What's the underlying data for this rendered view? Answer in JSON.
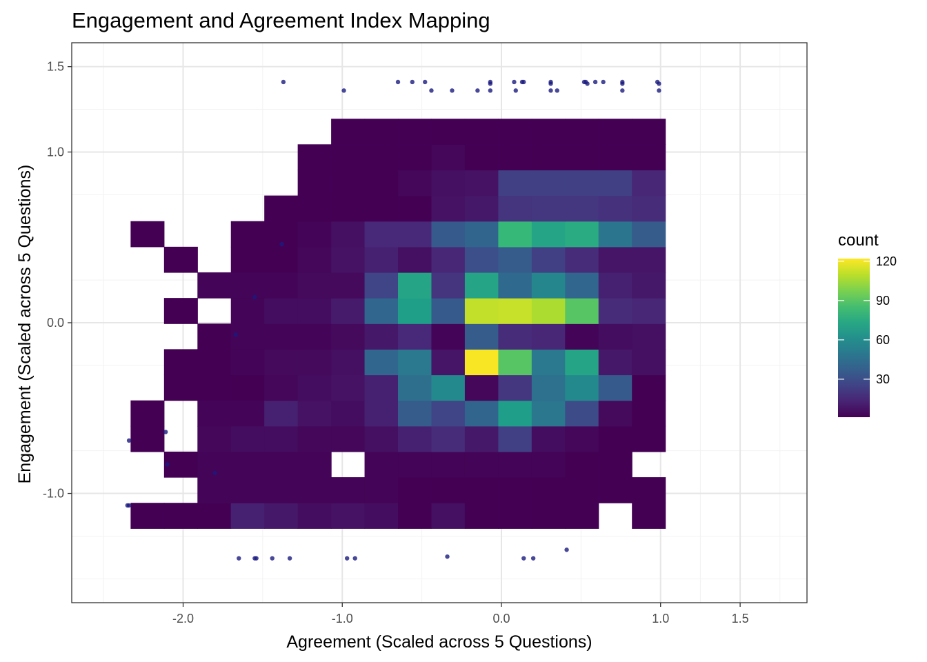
{
  "chart_data": {
    "type": "heatmap",
    "title": "Engagement and Agreement Index Mapping",
    "xlabel": "Agreement (Scaled across 5 Questions)",
    "ylabel": "Engagement (Scaled across 5 Questions)",
    "x_ticks": [
      {
        "value": -2.0,
        "label": "-2.0"
      },
      {
        "value": -1.0,
        "label": "-1.0"
      },
      {
        "value": 0.0,
        "label": "0.0"
      },
      {
        "value": 1.0,
        "label": "1.0"
      },
      {
        "value": 1.5,
        "label": "1.5"
      }
    ],
    "y_ticks": [
      {
        "value": 1.5,
        "label": "1.5"
      },
      {
        "value": 1.0,
        "label": "1.0"
      },
      {
        "value": 0.0,
        "label": "0.0"
      },
      {
        "value": -1.0,
        "label": "-1.0"
      }
    ],
    "xlim": [
      -2.7,
      1.92
    ],
    "ylim": [
      -1.64,
      1.64
    ],
    "grid": true,
    "bins": {
      "x_start": -2.33,
      "x_width": 0.21,
      "y_start": -1.205,
      "y_width": 0.15,
      "n_cols": 16,
      "n_rows": 16
    },
    "counts": [
      [
        1,
        1,
        1,
        12,
        9,
        5,
        7,
        5,
        1,
        6,
        1,
        1,
        1,
        1,
        0,
        1
      ],
      [
        0,
        0,
        2,
        2,
        2,
        2,
        2,
        2,
        1,
        1,
        1,
        1,
        1,
        1,
        1,
        1
      ],
      [
        0,
        1,
        2,
        2,
        2,
        2,
        0,
        2,
        2,
        2,
        2,
        2,
        2,
        1,
        1,
        0
      ],
      [
        1,
        0,
        3,
        5,
        5,
        3,
        3,
        6,
        12,
        16,
        9,
        24,
        5,
        3,
        1,
        1
      ],
      [
        1,
        0,
        2,
        2,
        12,
        7,
        5,
        12,
        36,
        26,
        40,
        68,
        49,
        29,
        4,
        1
      ],
      [
        0,
        1,
        1,
        1,
        3,
        5,
        7,
        12,
        45,
        58,
        3,
        20,
        46,
        58,
        35,
        1
      ],
      [
        0,
        1,
        1,
        2,
        4,
        4,
        6,
        41,
        50,
        8,
        121,
        90,
        50,
        72,
        9,
        6
      ],
      [
        0,
        0,
        1,
        2,
        2,
        2,
        4,
        9,
        15,
        2,
        36,
        16,
        14,
        2,
        5,
        6
      ],
      [
        0,
        1,
        0,
        2,
        5,
        5,
        10,
        41,
        69,
        35,
        111,
        112,
        107,
        90,
        16,
        14
      ],
      [
        0,
        0,
        2,
        2,
        2,
        4,
        4,
        26,
        72,
        19,
        72,
        42,
        57,
        41,
        12,
        9
      ],
      [
        0,
        1,
        0,
        1,
        1,
        3,
        7,
        12,
        6,
        14,
        30,
        36,
        24,
        16,
        8,
        8
      ],
      [
        1,
        0,
        0,
        1,
        1,
        2,
        6,
        15,
        15,
        35,
        40,
        82,
        72,
        75,
        48,
        36
      ],
      [
        0,
        0,
        0,
        0,
        1,
        1,
        1,
        1,
        1,
        7,
        9,
        19,
        20,
        20,
        18,
        16
      ],
      [
        0,
        0,
        0,
        0,
        0,
        1,
        1,
        1,
        3,
        6,
        7,
        24,
        24,
        24,
        24,
        14
      ],
      [
        0,
        0,
        0,
        0,
        0,
        1,
        1,
        1,
        1,
        3,
        1,
        1,
        1,
        1,
        1,
        1
      ],
      [
        0,
        0,
        0,
        0,
        0,
        0,
        1,
        1,
        1,
        1,
        1,
        1,
        1,
        1,
        1,
        1
      ]
    ],
    "counts_note": "",
    "color_scale": {
      "name": "viridis",
      "min": 1,
      "max": 122
    },
    "legend": {
      "title": "count",
      "position": "right",
      "ticks": [
        {
          "value": 30,
          "label": "30"
        },
        {
          "value": 60,
          "label": "60"
        },
        {
          "value": 90,
          "label": "90"
        },
        {
          "value": 120,
          "label": "120"
        }
      ]
    },
    "scatter_points": [
      [
        -1.37,
        1.41
      ],
      [
        -0.65,
        1.41
      ],
      [
        -0.56,
        1.41
      ],
      [
        -0.48,
        1.41
      ],
      [
        -0.07,
        1.41
      ],
      [
        -0.07,
        1.4
      ],
      [
        0.08,
        1.41
      ],
      [
        0.13,
        1.41
      ],
      [
        0.14,
        1.41
      ],
      [
        0.31,
        1.41
      ],
      [
        0.31,
        1.4
      ],
      [
        0.52,
        1.41
      ],
      [
        0.53,
        1.41
      ],
      [
        0.54,
        1.4
      ],
      [
        0.59,
        1.41
      ],
      [
        0.64,
        1.41
      ],
      [
        0.76,
        1.41
      ],
      [
        0.76,
        1.4
      ],
      [
        0.98,
        1.41
      ],
      [
        0.99,
        1.4
      ],
      [
        -0.99,
        1.36
      ],
      [
        -0.44,
        1.36
      ],
      [
        -0.31,
        1.36
      ],
      [
        -0.15,
        1.36
      ],
      [
        -0.07,
        1.36
      ],
      [
        0.09,
        1.36
      ],
      [
        0.31,
        1.36
      ],
      [
        0.35,
        1.36
      ],
      [
        0.76,
        1.36
      ],
      [
        0.99,
        1.36
      ],
      [
        -1.38,
        0.46
      ],
      [
        -1.55,
        0.15
      ],
      [
        -1.67,
        -0.07
      ],
      [
        -2.34,
        -0.69
      ],
      [
        -2.11,
        -0.64
      ],
      [
        -2.1,
        -0.83
      ],
      [
        -1.8,
        -0.88
      ],
      [
        -2.34,
        -1.07
      ],
      [
        -2.35,
        -1.07
      ],
      [
        -1.65,
        -1.38
      ],
      [
        -1.55,
        -1.38
      ],
      [
        -1.54,
        -1.38
      ],
      [
        -1.44,
        -1.38
      ],
      [
        -1.33,
        -1.38
      ],
      [
        -0.97,
        -1.38
      ],
      [
        -0.92,
        -1.38
      ],
      [
        -0.34,
        -1.37
      ],
      [
        0.14,
        -1.38
      ],
      [
        0.2,
        -1.38
      ],
      [
        0.41,
        -1.33
      ]
    ]
  }
}
